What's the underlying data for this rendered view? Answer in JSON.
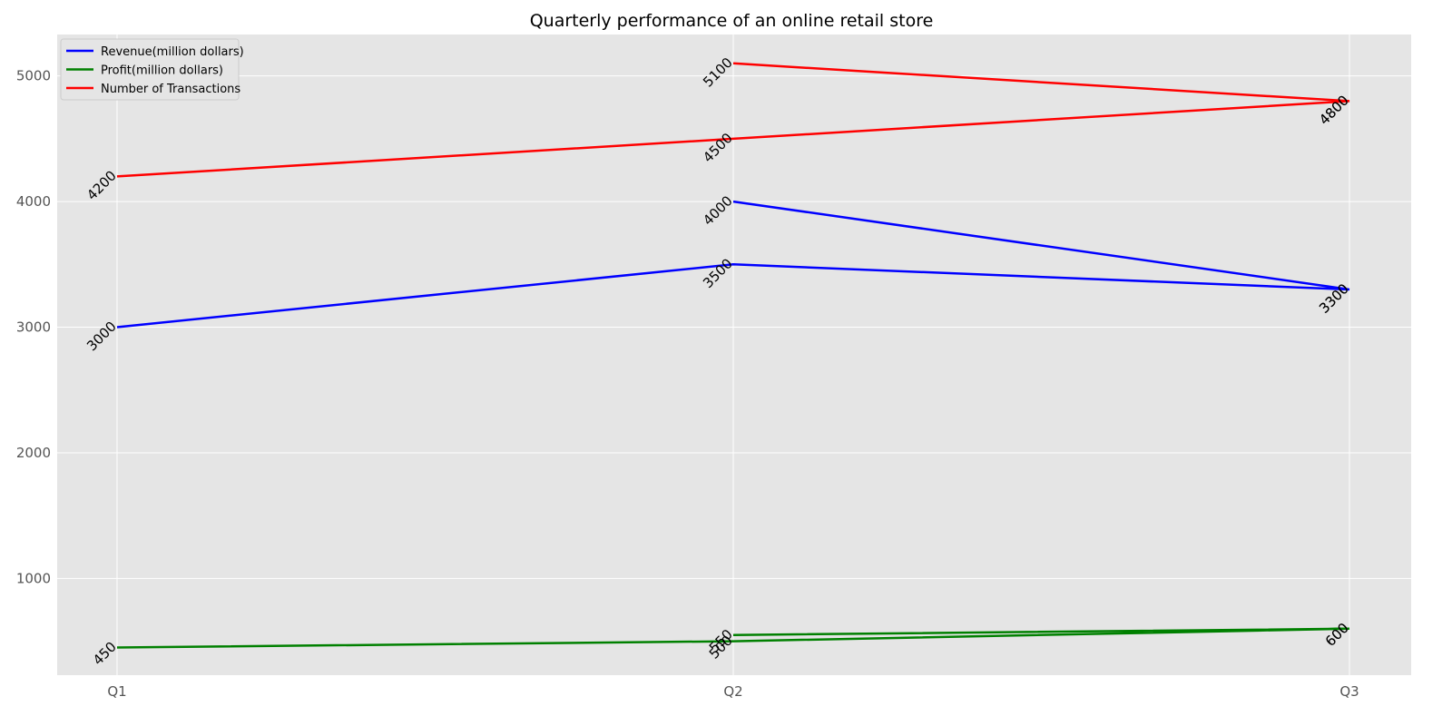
{
  "chart_data": {
    "type": "line",
    "title": "Quarterly performance of an online retail store",
    "xlabel": "",
    "ylabel": "",
    "categories": [
      "Q1",
      "Q2",
      "Q3"
    ],
    "ylim": [
      230,
      5330
    ],
    "yticks": [
      1000,
      2000,
      3000,
      4000,
      5000
    ],
    "grid": true,
    "legend_position": "top-left",
    "series": [
      {
        "name": "Revenue(million dollars)",
        "color": "#0000ff",
        "points": [
          [
            "Q1",
            3000
          ],
          [
            "Q2",
            3500
          ],
          [
            "Q3",
            3300
          ],
          [
            "Q2",
            4000
          ],
          [
            "Q3",
            3300
          ]
        ]
      },
      {
        "name": "Profit(million dollars)",
        "color": "#008000",
        "points": [
          [
            "Q1",
            450
          ],
          [
            "Q2",
            500
          ],
          [
            "Q3",
            600
          ],
          [
            "Q2",
            550
          ],
          [
            "Q3",
            600
          ]
        ]
      },
      {
        "name": "Number of Transactions",
        "color": "#ff0000",
        "points": [
          [
            "Q1",
            4200
          ],
          [
            "Q2",
            4500
          ],
          [
            "Q3",
            4800
          ],
          [
            "Q2",
            5100
          ],
          [
            "Q3",
            4800
          ]
        ]
      }
    ]
  }
}
